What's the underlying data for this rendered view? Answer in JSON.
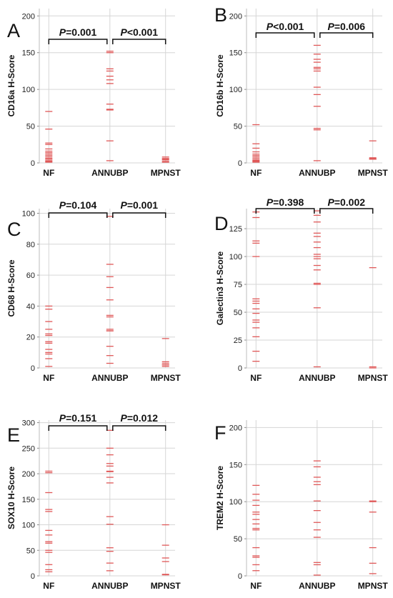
{
  "chart_data": [
    {
      "type": "scatter",
      "panel": "A",
      "ylabel": "CD16a H-Score",
      "categories": [
        "NF",
        "ANNUBP",
        "MPNST"
      ],
      "ylim": [
        0,
        210
      ],
      "yticks": [
        0,
        50,
        100,
        150,
        200
      ],
      "grid": true,
      "series": [
        {
          "values": [
            [
              70,
              46,
              27,
              25,
              19,
              16,
              14,
              12,
              10,
              8,
              6,
              5,
              3,
              2,
              1
            ],
            [
              152,
              150,
              128,
              125,
              118,
              113,
              108,
              80,
              73,
              72,
              30,
              3
            ],
            [
              8,
              6,
              5,
              4,
              2,
              1
            ]
          ]
        }
      ],
      "comparisons": [
        {
          "from": "NF",
          "to": "ANNUBP",
          "p_prefix": "P",
          "p_text": "=0.001"
        },
        {
          "from": "ANNUBP",
          "to": "MPNST",
          "p_prefix": "P",
          "p_text": "<0.001"
        }
      ]
    },
    {
      "type": "scatter",
      "panel": "B",
      "ylabel": "CD16b H-Score",
      "categories": [
        "NF",
        "ANNUBP",
        "MPNST"
      ],
      "ylim": [
        0,
        210
      ],
      "yticks": [
        0,
        50,
        100,
        150,
        200
      ],
      "grid": true,
      "series": [
        {
          "values": [
            [
              52,
              26,
              20,
              15,
              12,
              10,
              8,
              6,
              4,
              3,
              2,
              1
            ],
            [
              160,
              148,
              141,
              137,
              130,
              128,
              125,
              103,
              93,
              77,
              47,
              45,
              3
            ],
            [
              30,
              7,
              6,
              5,
              5
            ]
          ]
        }
      ],
      "comparisons": [
        {
          "from": "NF",
          "to": "ANNUBP",
          "p_prefix": "P",
          "p_text": "<0.001"
        },
        {
          "from": "ANNUBP",
          "to": "MPNST",
          "p_prefix": "P",
          "p_text": "=0.006"
        }
      ]
    },
    {
      "type": "scatter",
      "panel": "C",
      "ylabel": "CD68 H-Score",
      "categories": [
        "NF",
        "ANNUBP",
        "MPNST"
      ],
      "ylim": [
        0,
        103
      ],
      "yticks": [
        0,
        20,
        40,
        60,
        80,
        100
      ],
      "grid": true,
      "series": [
        {
          "values": [
            [
              40,
              38,
              30,
              25,
              22,
              21,
              17,
              16,
              12,
              10,
              9,
              6,
              1
            ],
            [
              98,
              67,
              59,
              52,
              44,
              34,
              33,
              25,
              24,
              24,
              14,
              8,
              3
            ],
            [
              19,
              4,
              3,
              2,
              2,
              1
            ]
          ]
        }
      ],
      "comparisons": [
        {
          "from": "NF",
          "to": "ANNUBP",
          "p_prefix": "P",
          "p_text": "=0.104"
        },
        {
          "from": "ANNUBP",
          "to": "MPNST",
          "p_prefix": "P",
          "p_text": "=0.001"
        }
      ]
    },
    {
      "type": "scatter",
      "panel": "D",
      "ylabel": "Galectin3 H-Score",
      "categories": [
        "NF",
        "ANNUBP",
        "MPNST"
      ],
      "ylim": [
        0,
        143
      ],
      "yticks": [
        0,
        25,
        50,
        75,
        100,
        125
      ],
      "grid": true,
      "series": [
        {
          "values": [
            [
              140,
              135,
              114,
              112,
              100,
              62,
              60,
              58,
              53,
              49,
              43,
              41,
              36,
              28,
              15,
              6
            ],
            [
              141,
              137,
              131,
              121,
              118,
              113,
              108,
              102,
              100,
              98,
              92,
              88,
              76,
              75,
              54,
              1
            ],
            [
              90,
              1,
              0
            ]
          ]
        }
      ],
      "comparisons": [
        {
          "from": "NF",
          "to": "ANNUBP",
          "p_prefix": "P",
          "p_text": "=0.398"
        },
        {
          "from": "ANNUBP",
          "to": "MPNST",
          "p_prefix": "P",
          "p_text": "=0.002"
        }
      ]
    },
    {
      "type": "scatter",
      "panel": "E",
      "ylabel": "SOX10 H-Score",
      "categories": [
        "NF",
        "ANNUBP",
        "MPNST"
      ],
      "ylim": [
        0,
        305
      ],
      "yticks": [
        0,
        50,
        100,
        150,
        200,
        250,
        300
      ],
      "grid": true,
      "series": [
        {
          "values": [
            [
              205,
              202,
              163,
              130,
              126,
              89,
              80,
              67,
              64,
              50,
              46,
              22,
              12,
              8
            ],
            [
              285,
              250,
              237,
              220,
              215,
              205,
              204,
              193,
              182,
              116,
              101,
              55,
              48,
              25,
              10
            ],
            [
              100,
              60,
              35,
              28,
              3,
              2
            ]
          ]
        }
      ],
      "comparisons": [
        {
          "from": "NF",
          "to": "ANNUBP",
          "p_prefix": "P",
          "p_text": "=0.151"
        },
        {
          "from": "ANNUBP",
          "to": "MPNST",
          "p_prefix": "P",
          "p_text": "=0.012"
        }
      ]
    },
    {
      "type": "scatter",
      "panel": "F",
      "ylabel": "TREM2 H-Score",
      "categories": [
        "NF",
        "ANNUBP",
        "MPNST"
      ],
      "ylim": [
        0,
        210
      ],
      "yticks": [
        0,
        50,
        100,
        150,
        200
      ],
      "grid": true,
      "series": [
        {
          "values": [
            [
              122,
              110,
              102,
              95,
              86,
              83,
              76,
              70,
              64,
              62,
              38,
              27,
              25,
              15,
              7
            ],
            [
              155,
              147,
              133,
              127,
              123,
              101,
              88,
              72,
              62,
              52,
              18,
              15,
              1
            ],
            [
              101,
              100,
              86,
              38,
              17,
              3
            ]
          ]
        }
      ],
      "comparisons": []
    }
  ]
}
